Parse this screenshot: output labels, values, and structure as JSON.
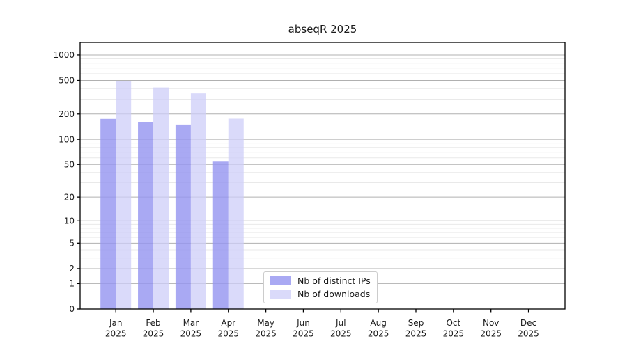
{
  "chart_data": {
    "type": "bar",
    "title": "abseqR 2025",
    "categories": [
      "Jan",
      "Feb",
      "Mar",
      "Apr",
      "May",
      "Jun",
      "Jul",
      "Aug",
      "Sep",
      "Oct",
      "Nov",
      "Dec"
    ],
    "year_label": "2025",
    "series": [
      {
        "name": "Nb of distinct IPs",
        "color": "rgba(150,150,240,0.82)",
        "values": [
          175,
          159,
          150,
          54,
          0,
          0,
          0,
          0,
          0,
          0,
          0,
          0
        ]
      },
      {
        "name": "Nb of downloads",
        "color": "rgba(206,206,248,0.75)",
        "values": [
          489,
          413,
          351,
          176,
          0,
          0,
          0,
          0,
          0,
          0,
          0,
          0
        ]
      }
    ],
    "scale": "log1p",
    "ylim": [
      0,
      1405
    ],
    "yticks": [
      0,
      1,
      2,
      5,
      10,
      20,
      50,
      100,
      200,
      500,
      1000
    ],
    "minor_gridlines": [
      3,
      4,
      6,
      7,
      8,
      9,
      30,
      40,
      60,
      70,
      80,
      90,
      300,
      400,
      600,
      700,
      800,
      900
    ],
    "grid": true,
    "legend_position": "lower-center-inside",
    "colors": {
      "major_grid": "#b0b0b0",
      "minor_grid": "#e9e9e9",
      "spine": "#000000",
      "tick_text": "#1a1a1a"
    }
  }
}
